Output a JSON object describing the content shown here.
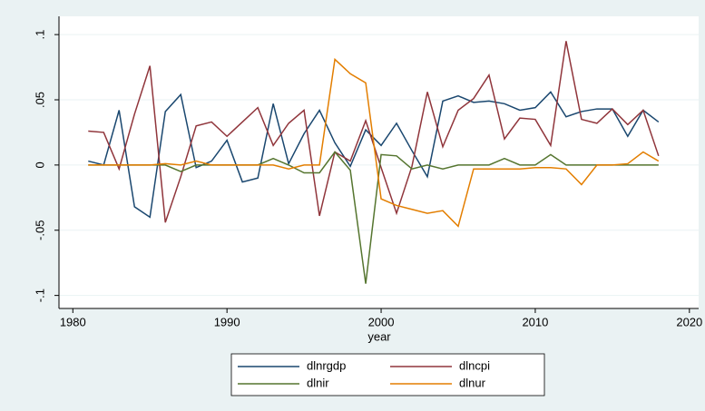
{
  "chart_data": {
    "type": "line",
    "x": [
      1981,
      1982,
      1983,
      1984,
      1985,
      1986,
      1987,
      1988,
      1989,
      1990,
      1991,
      1992,
      1993,
      1994,
      1995,
      1996,
      1997,
      1998,
      1999,
      2000,
      2001,
      2002,
      2003,
      2004,
      2005,
      2006,
      2007,
      2008,
      2009,
      2010,
      2011,
      2012,
      2013,
      2014,
      2015,
      2016,
      2017,
      2018
    ],
    "series": [
      {
        "name": "dlnrgdp",
        "color": "#1a476f",
        "values": [
          0.003,
          0,
          0.042,
          -0.032,
          -0.04,
          0.041,
          0.054,
          -0.002,
          0.003,
          0.019,
          -0.013,
          -0.01,
          0.047,
          0.001,
          0.024,
          0.042,
          0.017,
          -0.001,
          0.027,
          0.015,
          0.032,
          0.011,
          -0.009,
          0.049,
          0.053,
          0.048,
          0.049,
          0.047,
          0.042,
          0.044,
          0.056,
          0.037,
          0.041,
          0.043,
          0.043,
          0.022,
          0.042,
          0.033
        ]
      },
      {
        "name": "dlncpi",
        "color": "#90353b",
        "values": [
          0.026,
          0.025,
          -0.003,
          0.039,
          0.076,
          -0.044,
          -0.009,
          0.03,
          0.033,
          0.022,
          0.033,
          0.044,
          0.015,
          0.032,
          0.042,
          -0.039,
          0.01,
          0.003,
          0.034,
          -0.002,
          -0.037,
          -0.001,
          0.056,
          0.014,
          0.042,
          0.051,
          0.069,
          0.02,
          0.036,
          0.035,
          0.015,
          0.095,
          0.035,
          0.032,
          0.043,
          0.031,
          0.042,
          0.007
        ]
      },
      {
        "name": "dlnir",
        "color": "#55752f",
        "values": [
          0,
          0,
          0,
          0,
          0,
          0,
          -0.005,
          0,
          0,
          0,
          0,
          0,
          0.005,
          0,
          -0.006,
          -0.006,
          0.01,
          -0.004,
          -0.091,
          0.008,
          0.007,
          -0.003,
          0,
          -0.003,
          0,
          0,
          0,
          0.005,
          0,
          0,
          0.008,
          0,
          0,
          0,
          0,
          0,
          0,
          0
        ]
      },
      {
        "name": "dlnur",
        "color": "#e37e00",
        "values": [
          0,
          0,
          0,
          0,
          0,
          0.001,
          0,
          0.003,
          0,
          0,
          0,
          0,
          0,
          -0.003,
          0,
          0,
          0.081,
          0.07,
          0.063,
          -0.026,
          -0.031,
          -0.034,
          -0.037,
          -0.035,
          -0.047,
          -0.003,
          -0.003,
          -0.003,
          -0.003,
          -0.002,
          -0.002,
          -0.003,
          -0.015,
          0,
          0,
          0.001,
          0.01,
          0.003
        ]
      }
    ],
    "xlabel": "year",
    "xlim": [
      1979.1,
      2020.6
    ],
    "xticks": [
      1980,
      1990,
      2000,
      2010,
      2020
    ],
    "ylim": [
      -0.11,
      0.114
    ],
    "yticks": [
      {
        "value": 0.1,
        "label": ".1"
      },
      {
        "value": 0.05,
        "label": ".05"
      },
      0,
      {
        "value": -0.05,
        "label": "-.05"
      },
      {
        "value": -0.1,
        "label": "-.1"
      }
    ],
    "grid": true
  }
}
